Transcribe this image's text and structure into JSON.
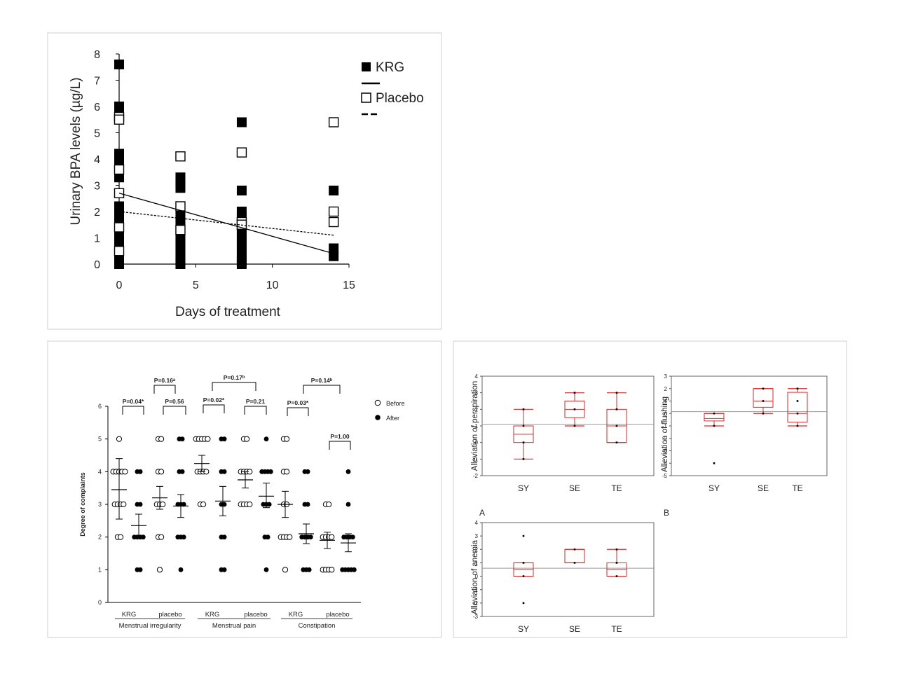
{
  "chart_data": [
    {
      "type": "scatter",
      "ylabel": "Urinary BPA levels (µg/L)",
      "xlabel": "Days of treatment",
      "xlim": [
        0,
        15
      ],
      "ylim": [
        0,
        8
      ],
      "xticks": [
        "0",
        "5",
        "10",
        "15"
      ],
      "yticks": [
        "0",
        "1",
        "2",
        "3",
        "4",
        "5",
        "6",
        "7",
        "8"
      ],
      "legend": [
        "KRG",
        "Placebo"
      ],
      "legend_position": "top-right",
      "series": [
        {
          "name": "KRG",
          "marker": "filled-square",
          "color": "#000000",
          "x": [
            0,
            0,
            0,
            0,
            0,
            0,
            0,
            0,
            0,
            0,
            0,
            0,
            0,
            0,
            0,
            0,
            0,
            0,
            0,
            0,
            0,
            0,
            0,
            4,
            4,
            4,
            4,
            4,
            4,
            4,
            4,
            4,
            4,
            4,
            4,
            4,
            4,
            4,
            8,
            8,
            8,
            8,
            8,
            8,
            8,
            8,
            8,
            8,
            8,
            8,
            8,
            8,
            14,
            14,
            14
          ],
          "y": [
            7.6,
            6.0,
            5.8,
            4.2,
            4.0,
            3.8,
            3.6,
            3.3,
            2.2,
            2.0,
            1.8,
            1.6,
            1.4,
            1.2,
            1.0,
            0.8,
            0.6,
            0.5,
            0.4,
            0.3,
            0.2,
            0.1,
            0.0,
            3.3,
            3.1,
            2.9,
            2.0,
            1.8,
            1.6,
            1.4,
            1.2,
            1.0,
            0.8,
            0.6,
            0.4,
            0.2,
            0.1,
            0.0,
            5.4,
            2.8,
            2.0,
            1.8,
            1.6,
            1.4,
            1.2,
            1.0,
            0.8,
            0.6,
            0.4,
            0.2,
            0.1,
            0.0,
            2.8,
            0.6,
            0.3
          ]
        },
        {
          "name": "Placebo",
          "marker": "open-square",
          "color": "#000000",
          "x": [
            0,
            0,
            0,
            0,
            0,
            0,
            4,
            4,
            4,
            8,
            8,
            8,
            14,
            14,
            14
          ],
          "y": [
            5.6,
            5.5,
            3.6,
            2.7,
            1.4,
            0.5,
            4.1,
            2.2,
            1.3,
            4.25,
            1.6,
            1.5,
            5.4,
            2.0,
            1.6
          ]
        }
      ],
      "trend_lines": [
        {
          "name": "KRG",
          "style": "solid",
          "x": [
            0,
            14
          ],
          "y": [
            2.7,
            0.4
          ]
        },
        {
          "name": "Placebo",
          "style": "dashed",
          "x": [
            0,
            14
          ],
          "y": [
            2.0,
            1.1
          ]
        }
      ]
    },
    {
      "type": "scatter",
      "ylabel": "Degree of complaints",
      "ylim": [
        0,
        6
      ],
      "yticks": [
        "0",
        "1",
        "2",
        "3",
        "4",
        "5",
        "6"
      ],
      "legend": [
        "Before",
        "After"
      ],
      "legend_position": "top-right",
      "groups": [
        {
          "name": "Menstrual irregularity",
          "subgroups": [
            {
              "label": "KRG",
              "before": {
                "values": [
                  5,
                  4,
                  4,
                  4,
                  4,
                  4,
                  3,
                  3,
                  3,
                  3,
                  2,
                  2
                ],
                "mean": 3.45,
                "ci": [
                  2.55,
                  4.4
                ]
              },
              "after": {
                "values": [
                  4,
                  4,
                  3,
                  3,
                  2,
                  2,
                  2,
                  2,
                  1,
                  1
                ],
                "mean": 2.35,
                "ci": [
                  2.0,
                  2.7
                ]
              }
            },
            {
              "label": "placebo",
              "before": {
                "values": [
                  5,
                  5,
                  4,
                  4,
                  3,
                  3,
                  3,
                  2,
                  2,
                  1
                ],
                "mean": 3.2,
                "ci": [
                  2.85,
                  3.55
                ]
              },
              "after": {
                "values": [
                  5,
                  5,
                  4,
                  4,
                  3,
                  3,
                  3,
                  2,
                  2,
                  2,
                  1
                ],
                "mean": 2.95,
                "ci": [
                  2.6,
                  3.3
                ]
              }
            }
          ]
        },
        {
          "name": "Menstrual pain",
          "subgroups": [
            {
              "label": "KRG",
              "before": {
                "values": [
                  5,
                  5,
                  5,
                  5,
                  5,
                  4,
                  4,
                  4,
                  4,
                  3,
                  3
                ],
                "mean": 4.25,
                "ci": [
                  4.0,
                  4.5
                ]
              },
              "after": {
                "values": [
                  5,
                  5,
                  4,
                  4,
                  3,
                  3,
                  2,
                  2,
                  1,
                  1
                ],
                "mean": 3.1,
                "ci": [
                  2.65,
                  3.55
                ]
              }
            },
            {
              "label": "placebo",
              "before": {
                "values": [
                  5,
                  5,
                  4,
                  4,
                  4,
                  4,
                  3,
                  3,
                  3,
                  3
                ],
                "mean": 3.75,
                "ci": [
                  3.5,
                  4.0
                ]
              },
              "after": {
                "values": [
                  5,
                  4,
                  4,
                  4,
                  4,
                  3,
                  3,
                  3,
                  2,
                  2,
                  1
                ],
                "mean": 3.25,
                "ci": [
                  2.9,
                  3.65
                ]
              }
            }
          ]
        },
        {
          "name": "Constipation",
          "subgroups": [
            {
              "label": "KRG",
              "before": {
                "values": [
                  5,
                  5,
                  4,
                  4,
                  3,
                  3,
                  2,
                  2,
                  2,
                  2,
                  1
                ],
                "mean": 3.0,
                "ci": [
                  2.6,
                  3.4
                ]
              },
              "after": {
                "values": [
                  4,
                  4,
                  3,
                  3,
                  2,
                  2,
                  2,
                  2,
                  1,
                  1,
                  1
                ],
                "mean": 2.1,
                "ci": [
                  1.8,
                  2.4
                ]
              }
            },
            {
              "label": "placebo",
              "before": {
                "values": [
                  3,
                  3,
                  2,
                  2,
                  2,
                  2,
                  1,
                  1,
                  1,
                  1
                ],
                "mean": 1.9,
                "ci": [
                  1.65,
                  2.15
                ]
              },
              "after": {
                "values": [
                  4,
                  3,
                  2,
                  2,
                  2,
                  2,
                  1,
                  1,
                  1,
                  1,
                  1
                ],
                "mean": 1.82,
                "ci": [
                  1.55,
                  2.1
                ]
              }
            }
          ]
        }
      ],
      "annotations": [
        "P=0.16ᵃ",
        "P=0.04*",
        "P=0.56",
        "P=0.17ᵇ",
        "P=0.02*",
        "P=0.21",
        "P=0.14ᵇ",
        "P=0.03*",
        "P=1.00"
      ]
    },
    {
      "type": "box",
      "panel": "A",
      "ylabel": "Alleviation of perspiration",
      "categories": [
        "SY",
        "SE",
        "TE"
      ],
      "ylim": [
        -2,
        4
      ],
      "yticks": [
        "-2",
        "-1",
        "0",
        "1",
        "2",
        "3",
        "4"
      ],
      "reference_line": 1.1,
      "boxes": [
        {
          "whisker_low": -1,
          "q1": 0,
          "median": 0.5,
          "q3": 1,
          "whisker_high": 2,
          "points": [
            2,
            1,
            0,
            -1
          ]
        },
        {
          "whisker_low": 1,
          "q1": 1.5,
          "median": 2,
          "q3": 2.5,
          "whisker_high": 3,
          "points": [
            3,
            2,
            1
          ]
        },
        {
          "whisker_low": 0,
          "q1": 0,
          "median": 1,
          "q3": 2,
          "whisker_high": 3,
          "points": [
            3,
            2,
            1,
            0
          ]
        }
      ]
    },
    {
      "type": "box",
      "panel": "B",
      "ylabel": "Alleviation of flushing",
      "categories": [
        "SY",
        "SE",
        "TE"
      ],
      "ylim": [
        -5,
        3
      ],
      "yticks": [
        "-5",
        "-4",
        "-3",
        "-2",
        "-1",
        "0",
        "1",
        "2",
        "3"
      ],
      "reference_line": 0.15,
      "boxes": [
        {
          "whisker_low": -1,
          "q1": -0.6,
          "median": -0.4,
          "q3": 0,
          "whisker_high": 0,
          "points": [
            0,
            -1,
            -4
          ]
        },
        {
          "whisker_low": 0,
          "q1": 0.5,
          "median": 1,
          "q3": 2,
          "whisker_high": 2,
          "points": [
            2,
            1,
            0
          ]
        },
        {
          "whisker_low": -1,
          "q1": -0.7,
          "median": 0,
          "q3": 1.7,
          "whisker_high": 2,
          "points": [
            2,
            1,
            0,
            -1
          ]
        }
      ]
    },
    {
      "type": "box",
      "panel": "",
      "ylabel": "Alleviation of anemia",
      "categories": [
        "SY",
        "SE",
        "TE"
      ],
      "ylim": [
        -3,
        4
      ],
      "yticks": [
        "-3",
        "-2",
        "-1",
        "0",
        "1",
        "2",
        "3",
        "4"
      ],
      "reference_line": 0.6,
      "boxes": [
        {
          "whisker_low": 0,
          "q1": 0,
          "median": 0.5,
          "q3": 1,
          "whisker_high": 1,
          "points": [
            3,
            1,
            0,
            -2
          ]
        },
        {
          "whisker_low": 1,
          "q1": 1,
          "median": 1,
          "q3": 2,
          "whisker_high": 2,
          "points": [
            2,
            1
          ]
        },
        {
          "whisker_low": 0,
          "q1": 0,
          "median": 0.5,
          "q3": 1,
          "whisker_high": 2,
          "points": [
            2,
            1,
            0
          ]
        }
      ]
    }
  ]
}
